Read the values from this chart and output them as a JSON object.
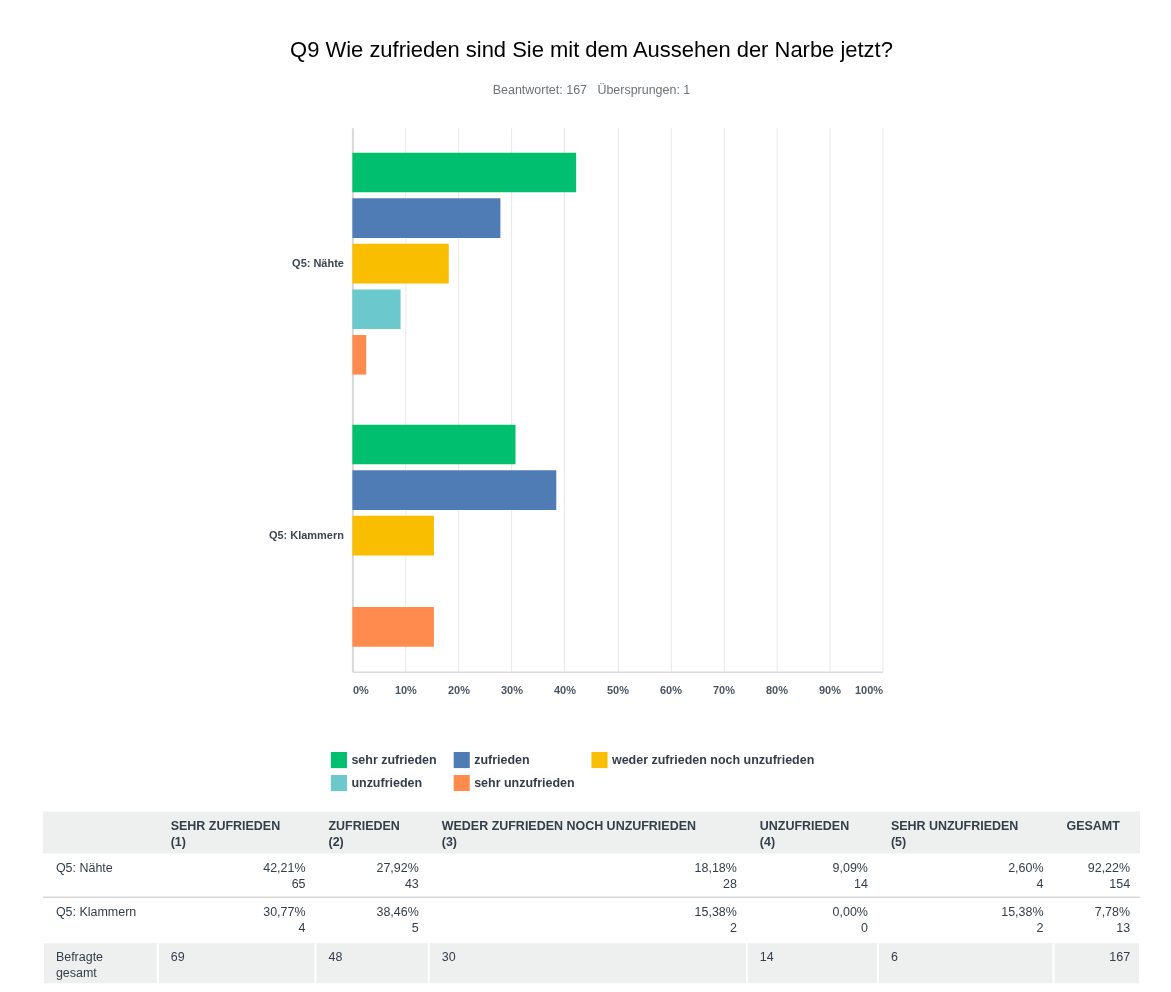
{
  "chart_data": {
    "type": "bar",
    "orientation": "horizontal",
    "title": "Q9 Wie zufrieden sind Sie mit dem Aussehen der Narbe jetzt?",
    "subtitle": "Beantwortet: 167   Übersprungen: 1",
    "categories": [
      "Q5: Nähte",
      "Q5: Klammern"
    ],
    "series": [
      {
        "name": "sehr zufrieden",
        "color": "#00bf6f",
        "values": [
          42.21,
          30.77
        ]
      },
      {
        "name": "zufrieden",
        "color": "#507cb6",
        "values": [
          27.92,
          38.46
        ]
      },
      {
        "name": "weder zufrieden noch unzufrieden",
        "color": "#f9be00",
        "values": [
          18.18,
          15.38
        ]
      },
      {
        "name": "unzufrieden",
        "color": "#6bc8cd",
        "values": [
          9.09,
          0.0
        ]
      },
      {
        "name": "sehr unzufrieden",
        "color": "#ff8b4f",
        "values": [
          2.6,
          15.38
        ]
      }
    ],
    "xlim": [
      0,
      100
    ],
    "xticks": [
      {
        "value": 0,
        "label": "0%"
      },
      {
        "value": 10,
        "label": "10%"
      },
      {
        "value": 20,
        "label": "20%"
      },
      {
        "value": 30,
        "label": "30%"
      },
      {
        "value": 40,
        "label": "40%"
      },
      {
        "value": 50,
        "label": "50%"
      },
      {
        "value": 60,
        "label": "60%"
      },
      {
        "value": 70,
        "label": "70%"
      },
      {
        "value": 80,
        "label": "80%"
      },
      {
        "value": 90,
        "label": "90%"
      },
      {
        "value": 100,
        "label": "100%"
      }
    ],
    "grid": "x",
    "legend": "bottom",
    "annotations": [
      "SEHR ZUFRIEDEN\n(1)",
      "ZUFRIEDEN\n(2)",
      "WEDER ZUFRIEDEN NOCH UNZUFRIEDEN\n(3)",
      "UNZUFRIEDEN\n(4)",
      "SEHR UNZUFRIEDEN\n(5)",
      "GESAMT",
      "42,21%\n65",
      "27,92%\n43",
      "18,18%\n28",
      "9,09%\n14",
      "2,60%\n4",
      "92,22%\n154",
      "30,77%\n4",
      "38,46%\n5",
      "15,38%\n2",
      "0,00%\n0",
      "15,38%\n2",
      "7,78%\n13",
      "Befragte\ngesamt",
      "69",
      "48",
      "30",
      "14",
      "6",
      "167"
    ]
  }
}
